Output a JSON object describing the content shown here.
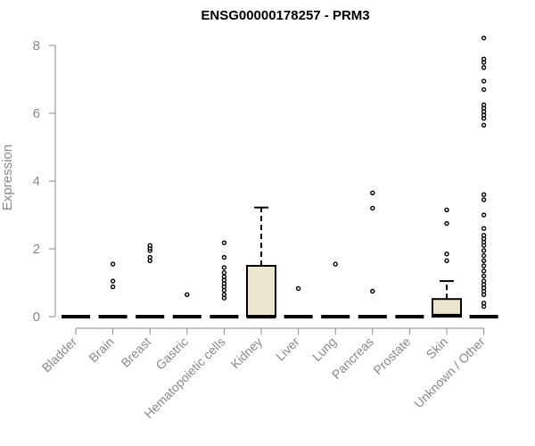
{
  "chart_data": {
    "type": "boxplot",
    "title": "ENSG00000178257 - PRM3",
    "xlabel": "",
    "ylabel": "Expression",
    "ylim": [
      0,
      8.3
    ],
    "yticks": [
      "0",
      "2",
      "4",
      "6",
      "8"
    ],
    "categories": [
      "Bladder",
      "Brain",
      "Breast",
      "Gastric",
      "Hematopoietic cells",
      "Kidney",
      "Liver",
      "Lung",
      "Pancreas",
      "Prostate",
      "Skin",
      "Unknown / Other"
    ],
    "box_fill": "#ece6cf",
    "boxes": [
      {
        "category": "Bladder",
        "q1": 0,
        "median": 0,
        "q3": 0,
        "whisker_low": 0,
        "whisker_high": 0,
        "outliers": []
      },
      {
        "category": "Brain",
        "q1": 0,
        "median": 0,
        "q3": 0,
        "whisker_low": 0,
        "whisker_high": 0,
        "outliers": [
          0.88,
          1.05,
          1.55
        ]
      },
      {
        "category": "Breast",
        "q1": 0,
        "median": 0,
        "q3": 0,
        "whisker_low": 0,
        "whisker_high": 0,
        "outliers": [
          1.65,
          1.75,
          1.95,
          2.02,
          2.1
        ]
      },
      {
        "category": "Gastric",
        "q1": 0,
        "median": 0,
        "q3": 0,
        "whisker_low": 0,
        "whisker_high": 0,
        "outliers": [
          0.65
        ]
      },
      {
        "category": "Hematopoietic cells",
        "q1": 0,
        "median": 0,
        "q3": 0,
        "whisker_low": 0,
        "whisker_high": 0,
        "outliers": [
          0.55,
          0.65,
          0.78,
          0.88,
          0.98,
          1.08,
          1.18,
          1.3,
          1.45,
          1.75,
          2.18
        ]
      },
      {
        "category": "Kidney",
        "q1": 0,
        "median": 0,
        "q3": 1.5,
        "whisker_low": 0,
        "whisker_high": 3.22,
        "outliers": []
      },
      {
        "category": "Liver",
        "q1": 0,
        "median": 0,
        "q3": 0,
        "whisker_low": 0,
        "whisker_high": 0,
        "outliers": [
          0.83
        ]
      },
      {
        "category": "Lung",
        "q1": 0,
        "median": 0,
        "q3": 0,
        "whisker_low": 0,
        "whisker_high": 0,
        "outliers": [
          1.55
        ]
      },
      {
        "category": "Pancreas",
        "q1": 0,
        "median": 0,
        "q3": 0,
        "whisker_low": 0,
        "whisker_high": 0,
        "outliers": [
          0.75,
          3.2,
          3.65
        ]
      },
      {
        "category": "Prostate",
        "q1": 0,
        "median": 0,
        "q3": 0,
        "whisker_low": 0,
        "whisker_high": 0,
        "outliers": []
      },
      {
        "category": "Skin",
        "q1": 0,
        "median": 0.03,
        "q3": 0.52,
        "whisker_low": 0,
        "whisker_high": 1.05,
        "outliers": [
          1.65,
          1.85,
          2.75,
          3.15
        ]
      },
      {
        "category": "Unknown / Other",
        "q1": 0,
        "median": 0,
        "q3": 0,
        "whisker_low": 0,
        "whisker_high": 0,
        "outliers": [
          0.3,
          0.4,
          0.65,
          0.75,
          0.85,
          0.95,
          1.05,
          1.2,
          1.35,
          1.5,
          1.65,
          1.8,
          1.95,
          2.1,
          2.2,
          2.3,
          2.4,
          2.6,
          3.0,
          3.45,
          3.6,
          5.65,
          5.85,
          5.95,
          6.05,
          6.15,
          6.25,
          6.7,
          6.95,
          7.35,
          7.5,
          7.6,
          8.22
        ]
      }
    ]
  }
}
